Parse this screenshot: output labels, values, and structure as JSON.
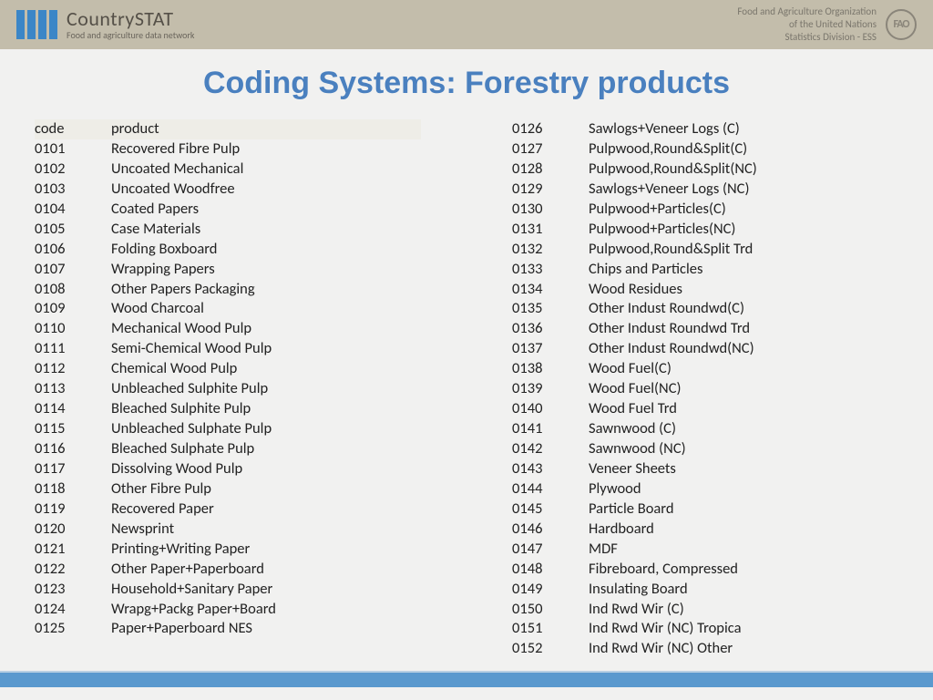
{
  "header": {
    "logo_title": "CountrySTAT",
    "logo_subtitle": "Food and agriculture data network",
    "fao_line1": "Food and Agriculture Organization",
    "fao_line2": "of the United Nations",
    "fao_line3": "Statistics Division - ESS",
    "fao_icon_text": "FAO"
  },
  "title": "Coding Systems: Forestry products",
  "table": {
    "head_code": "code",
    "head_product": "product"
  },
  "left_rows": [
    {
      "code": "0101",
      "product": "Recovered Fibre Pulp"
    },
    {
      "code": "0102",
      "product": "Uncoated Mechanical"
    },
    {
      "code": "0103",
      "product": "Uncoated Woodfree"
    },
    {
      "code": "0104",
      "product": "Coated Papers"
    },
    {
      "code": "0105",
      "product": "Case Materials"
    },
    {
      "code": "0106",
      "product": "Folding Boxboard"
    },
    {
      "code": "0107",
      "product": "Wrapping Papers"
    },
    {
      "code": "0108",
      "product": "Other Papers Packaging"
    },
    {
      "code": "0109",
      "product": "Wood Charcoal"
    },
    {
      "code": "0110",
      "product": "Mechanical Wood Pulp"
    },
    {
      "code": "0111",
      "product": "Semi-Chemical Wood Pulp"
    },
    {
      "code": "0112",
      "product": "Chemical Wood Pulp"
    },
    {
      "code": "0113",
      "product": "Unbleached Sulphite Pulp"
    },
    {
      "code": "0114",
      "product": "Bleached Sulphite Pulp"
    },
    {
      "code": "0115",
      "product": "Unbleached Sulphate Pulp"
    },
    {
      "code": "0116",
      "product": "Bleached Sulphate Pulp"
    },
    {
      "code": "0117",
      "product": "Dissolving Wood Pulp"
    },
    {
      "code": "0118",
      "product": "Other Fibre Pulp"
    },
    {
      "code": "0119",
      "product": "Recovered Paper"
    },
    {
      "code": "0120",
      "product": "Newsprint"
    },
    {
      "code": "0121",
      "product": "Printing+Writing Paper"
    },
    {
      "code": "0122",
      "product": "Other Paper+Paperboard"
    },
    {
      "code": "0123",
      "product": "Household+Sanitary Paper"
    },
    {
      "code": "0124",
      "product": "Wrapg+Packg Paper+Board"
    },
    {
      "code": "0125",
      "product": "Paper+Paperboard NES"
    }
  ],
  "right_rows": [
    {
      "code": "0126",
      "product": "Sawlogs+Veneer Logs (C)"
    },
    {
      "code": "0127",
      "product": "Pulpwood,Round&Split(C)"
    },
    {
      "code": "0128",
      "product": "Pulpwood,Round&Split(NC)"
    },
    {
      "code": "0129",
      "product": "Sawlogs+Veneer Logs (NC)"
    },
    {
      "code": "0130",
      "product": "Pulpwood+Particles(C)"
    },
    {
      "code": "0131",
      "product": "Pulpwood+Particles(NC)"
    },
    {
      "code": "0132",
      "product": "Pulpwood,Round&Split Trd"
    },
    {
      "code": "0133",
      "product": "Chips and Particles"
    },
    {
      "code": "0134",
      "product": "Wood Residues"
    },
    {
      "code": "0135",
      "product": "Other Indust Roundwd(C)"
    },
    {
      "code": "0136",
      "product": "Other Indust Roundwd Trd"
    },
    {
      "code": "0137",
      "product": "Other Indust Roundwd(NC)"
    },
    {
      "code": "0138",
      "product": "Wood Fuel(C)"
    },
    {
      "code": "0139",
      "product": "Wood Fuel(NC)"
    },
    {
      "code": "0140",
      "product": "Wood Fuel Trd"
    },
    {
      "code": "0141",
      "product": "Sawnwood (C)"
    },
    {
      "code": "0142",
      "product": "Sawnwood (NC)"
    },
    {
      "code": "0143",
      "product": "Veneer Sheets"
    },
    {
      "code": "0144",
      "product": "Plywood"
    },
    {
      "code": "0145",
      "product": "Particle Board"
    },
    {
      "code": "0146",
      "product": "Hardboard"
    },
    {
      "code": "0147",
      "product": "MDF"
    },
    {
      "code": "0148",
      "product": "Fibreboard, Compressed"
    },
    {
      "code": "0149",
      "product": "Insulating Board"
    },
    {
      "code": "0150",
      "product": "Ind Rwd Wir (C)"
    },
    {
      "code": "0151",
      "product": "Ind Rwd Wir (NC) Tropica"
    },
    {
      "code": "0152",
      "product": "Ind Rwd Wir (NC) Other"
    }
  ]
}
